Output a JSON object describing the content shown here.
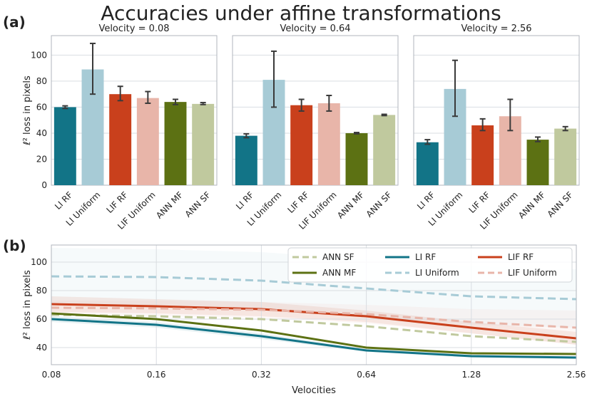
{
  "figure": {
    "title": "Accuracies under affine transformations",
    "panel_a_label": "(a)",
    "panel_b_label": "(b)"
  },
  "colors": {
    "LI RF": "#127487",
    "LI Uniform": "#a7cbd6",
    "LIF RF": "#c9401c",
    "LIF Uniform": "#e8b5a9",
    "ANN MF": "#5c7113",
    "ANN SF": "#c0c99e"
  },
  "chart_data": [
    {
      "type": "bar",
      "title": "Velocity = 0.08",
      "ylabel": "ℓ² loss in pixels",
      "ylim": [
        0,
        115
      ],
      "yticks": [
        0,
        20,
        40,
        60,
        80,
        100
      ],
      "categories": [
        "LI RF",
        "LI Uniform",
        "LIF RF",
        "LIF Uniform",
        "ANN MF",
        "ANN SF"
      ],
      "values": [
        60,
        89,
        70,
        67,
        64,
        62.5
      ],
      "errors": [
        [
          59,
          61
        ],
        [
          70,
          109
        ],
        [
          65,
          76
        ],
        [
          63,
          72
        ],
        [
          62,
          66
        ],
        [
          62,
          63.5
        ]
      ]
    },
    {
      "type": "bar",
      "title": "Velocity = 0.64",
      "ylim": [
        0,
        115
      ],
      "yticks": [
        0,
        20,
        40,
        60,
        80,
        100
      ],
      "categories": [
        "LI RF",
        "LI Uniform",
        "LIF RF",
        "LIF Uniform",
        "ANN MF",
        "ANN SF"
      ],
      "values": [
        38,
        81,
        61.5,
        63,
        40,
        54
      ],
      "errors": [
        [
          36.5,
          39.5
        ],
        [
          60,
          103
        ],
        [
          57,
          66
        ],
        [
          57,
          69
        ],
        [
          39.5,
          40.5
        ],
        [
          53.5,
          54.5
        ]
      ]
    },
    {
      "type": "bar",
      "title": "Velocity = 2.56",
      "ylim": [
        0,
        115
      ],
      "yticks": [
        0,
        20,
        40,
        60,
        80,
        100
      ],
      "categories": [
        "LI RF",
        "LI Uniform",
        "LIF RF",
        "LIF Uniform",
        "ANN MF",
        "ANN SF"
      ],
      "values": [
        33,
        74,
        46,
        53,
        35,
        43.5
      ],
      "errors": [
        [
          31.5,
          35
        ],
        [
          53,
          96
        ],
        [
          42,
          51
        ],
        [
          42,
          66
        ],
        [
          33.5,
          37
        ],
        [
          42,
          45
        ]
      ]
    },
    {
      "type": "line",
      "xlabel": "Velocities",
      "ylabel": "ℓ² loss in pixels",
      "x": [
        0.08,
        0.16,
        0.32,
        0.64,
        1.28,
        2.56
      ],
      "x_tick_labels": [
        "0.08",
        "0.16",
        "0.32",
        "0.64",
        "1.28",
        "2.56"
      ],
      "xscale": "log2",
      "ylim": [
        28,
        112
      ],
      "yticks": [
        40,
        60,
        80,
        100
      ],
      "legend": "top-right",
      "series": [
        {
          "name": "ANN SF",
          "style": "dashed",
          "values": [
            63,
            62,
            60,
            55,
            48,
            44
          ]
        },
        {
          "name": "ANN MF",
          "style": "solid",
          "values": [
            64,
            60,
            52,
            40,
            36,
            35.5
          ]
        },
        {
          "name": "LI RF",
          "style": "solid",
          "values": [
            60,
            56,
            48,
            38,
            34,
            33
          ],
          "band": [
            [
              58,
              62
            ],
            [
              54,
              58
            ],
            [
              46,
              50
            ],
            [
              37,
              39
            ],
            [
              33,
              35
            ],
            [
              32,
              34
            ]
          ]
        },
        {
          "name": "LI Uniform",
          "style": "dashed",
          "values": [
            90,
            89.5,
            87,
            81.5,
            76,
            74
          ],
          "band": [
            [
              70,
              110
            ],
            [
              70,
              109
            ],
            [
              68,
              107
            ],
            [
              62,
              102
            ],
            [
              56,
              97
            ],
            [
              54,
              95
            ]
          ]
        },
        {
          "name": "LIF RF",
          "style": "solid",
          "values": [
            70.5,
            69,
            67,
            62,
            54,
            46.5
          ],
          "band": [
            [
              65,
              76
            ],
            [
              64,
              74
            ],
            [
              62,
              72
            ],
            [
              58,
              66
            ],
            [
              50,
              58
            ],
            [
              42,
              51
            ]
          ]
        },
        {
          "name": "LIF Uniform",
          "style": "dashed",
          "values": [
            68,
            67.5,
            66.5,
            63.5,
            58,
            54
          ],
          "band": [
            [
              63,
              73
            ],
            [
              62,
              73
            ],
            [
              61,
              72
            ],
            [
              57,
              70
            ],
            [
              50,
              67
            ],
            [
              42,
              66
            ]
          ]
        }
      ]
    }
  ]
}
